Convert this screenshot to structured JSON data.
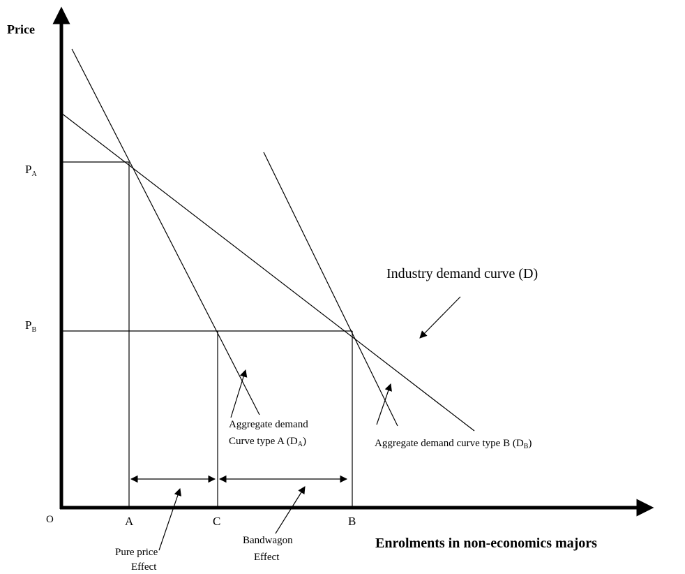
{
  "axes": {
    "y_label": "Price",
    "x_label": "Enrolments in non-economics majors",
    "origin": "O"
  },
  "price_levels": [
    {
      "label": "P",
      "subscript": "A"
    },
    {
      "label": "P",
      "subscript": "B"
    }
  ],
  "quantities": [
    "A",
    "C",
    "B"
  ],
  "curves": {
    "industry": "Industry demand curve (D)",
    "type_a": {
      "line1": "Aggregate demand",
      "line2": "Curve type A (D",
      "subscript": "A",
      "close": ")"
    },
    "type_b": {
      "line1": "Aggregate demand curve type B (D",
      "subscript": "B",
      "close": ")"
    }
  },
  "effects": [
    {
      "line1": "Pure price",
      "line2": "Effect"
    },
    {
      "line1": "Bandwagon",
      "line2": "Effect"
    }
  ]
}
